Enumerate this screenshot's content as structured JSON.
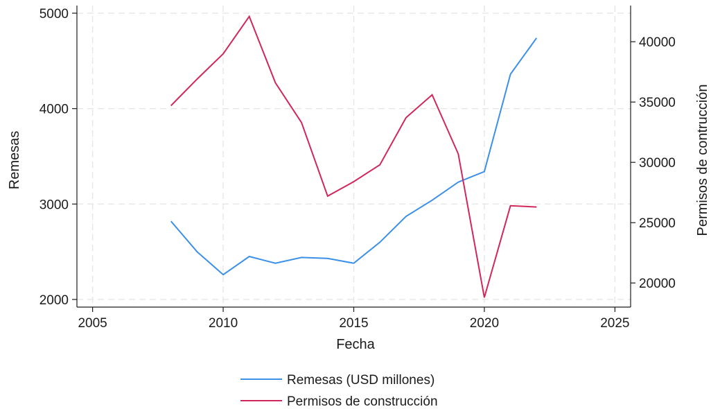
{
  "chart_data": {
    "type": "line",
    "xlabel": "Fecha",
    "ylabel_left": "Remesas",
    "ylabel_right": "Permisos de contrucción",
    "xlim": [
      2004.4,
      2025.6
    ],
    "ylim_left": [
      1920,
      5080
    ],
    "ylim_right": [
      18000,
      43000
    ],
    "x_ticks": [
      2005,
      2010,
      2015,
      2020,
      2025
    ],
    "y_ticks_left": [
      2000,
      3000,
      4000,
      5000
    ],
    "y_ticks_right": [
      20000,
      25000,
      30000,
      35000,
      40000
    ],
    "grid": true,
    "legend_position": "bottom",
    "series": [
      {
        "name": "Remesas (USD millones)",
        "axis": "left",
        "color": "#3a8fe8",
        "x": [
          2008,
          2009,
          2010,
          2011,
          2012,
          2013,
          2014,
          2015,
          2016,
          2017,
          2018,
          2019,
          2020,
          2021,
          2022
        ],
        "values": [
          2820,
          2500,
          2260,
          2450,
          2380,
          2440,
          2430,
          2380,
          2600,
          2870,
          3040,
          3230,
          3340,
          4360,
          4740
        ]
      },
      {
        "name": "Permisos de construcción",
        "axis": "right",
        "color": "#d1265a",
        "x": [
          2008,
          2009,
          2010,
          2011,
          2012,
          2013,
          2014,
          2015,
          2016,
          2017,
          2018,
          2019,
          2020,
          2021,
          2022
        ],
        "values": [
          34700,
          36900,
          39000,
          42100,
          36600,
          33300,
          27200,
          28400,
          29800,
          33700,
          35600,
          30700,
          18800,
          26400,
          26300
        ]
      }
    ]
  }
}
